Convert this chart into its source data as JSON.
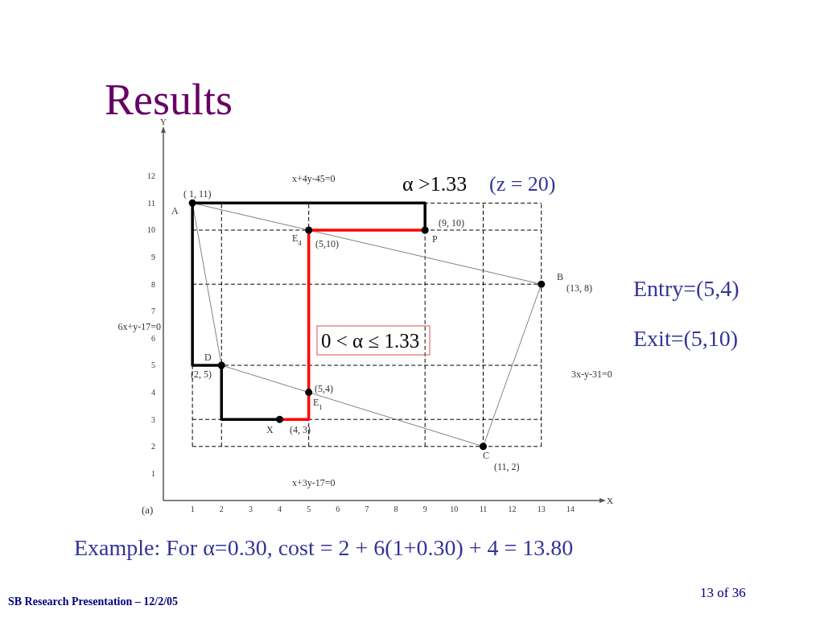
{
  "chart_data": {
    "type": "line",
    "title": "Results",
    "xlabel": "X",
    "ylabel": "Y",
    "xlim": [
      0,
      15
    ],
    "ylim": [
      0,
      13.6
    ],
    "xticks": [
      1,
      2,
      3,
      4,
      5,
      6,
      7,
      8,
      9,
      10,
      11,
      12,
      13,
      14
    ],
    "yticks": [
      1,
      2,
      3,
      4,
      5,
      6,
      7,
      8,
      9,
      10,
      11,
      12
    ],
    "series": [
      {
        "color": "#808080",
        "x": [
          1,
          13
        ],
        "values": [
          11,
          8
        ]
      },
      {
        "color": "#808080",
        "x": [
          11,
          13
        ],
        "values": [
          2,
          8
        ]
      },
      {
        "color": "#808080",
        "x": [
          2,
          11
        ],
        "values": [
          5,
          2
        ]
      },
      {
        "color": "#808080",
        "x": [
          1,
          2
        ],
        "values": [
          11,
          5
        ]
      },
      {
        "color": "#000000",
        "x": [
          9,
          9,
          1,
          1,
          2,
          2,
          4
        ],
        "values": [
          10,
          11,
          11,
          5,
          5,
          3,
          3
        ]
      },
      {
        "color": "#ff0000",
        "x": [
          4,
          5,
          5,
          9
        ],
        "values": [
          3,
          3,
          10,
          10
        ]
      },
      {
        "type": "scatter",
        "marker": "circle",
        "color": "#000000",
        "x": [
          1,
          9,
          13,
          11,
          2,
          4,
          5,
          5
        ],
        "values": [
          11,
          10,
          8,
          2,
          5,
          3,
          10,
          4
        ]
      }
    ],
    "ref_lines": [
      {
        "axis": "x",
        "value": 1,
        "color": "#000000",
        "line_style": "dashed"
      },
      {
        "axis": "x",
        "value": 2,
        "color": "#000000",
        "line_style": "dashed"
      },
      {
        "axis": "x",
        "value": 5,
        "color": "#000000",
        "line_style": "dashed"
      },
      {
        "axis": "x",
        "value": 9,
        "color": "#000000",
        "line_style": "dashed"
      },
      {
        "axis": "x",
        "value": 11,
        "color": "#000000",
        "line_style": "dashed"
      },
      {
        "axis": "x",
        "value": 13,
        "color": "#000000",
        "line_style": "dashed"
      },
      {
        "axis": "y",
        "value": 2,
        "color": "#000000",
        "line_style": "dashed"
      },
      {
        "axis": "y",
        "value": 3,
        "color": "#000000",
        "line_style": "dashed"
      },
      {
        "axis": "y",
        "value": 5,
        "color": "#000000",
        "line_style": "dashed"
      },
      {
        "axis": "y",
        "value": 8,
        "color": "#000000",
        "line_style": "dashed"
      },
      {
        "axis": "y",
        "value": 10,
        "color": "#000000",
        "line_style": "dashed"
      },
      {
        "axis": "y",
        "value": 11,
        "color": "#000000",
        "line_style": "dashed"
      }
    ],
    "annotations": [
      "( 1, 11)",
      "A",
      "(9, 10)",
      "P",
      "B",
      "(13, 8)",
      "C",
      "(11, 2)",
      "D",
      "(2, 5)",
      "X",
      "(4, 3)",
      "E$_{4}$",
      "(5,10)",
      "(5,4)",
      "E$_{1}$",
      "x+4y-45=0",
      "3x-y-31=0",
      "x+3y-17=0",
      "α >1.33",
      "(z = 20)",
      "0 < α ≤ 1.33",
      "6x+y-17=0",
      "Entry=(5,4)",
      "Exit=(5,10)",
      "Example: For α=0.30, cost = 2 + 6(1+0.30) + 4 = 13.80",
      "SB Research Presentation – 12/2/05",
      "13 of 36",
      "(a)"
    ]
  }
}
